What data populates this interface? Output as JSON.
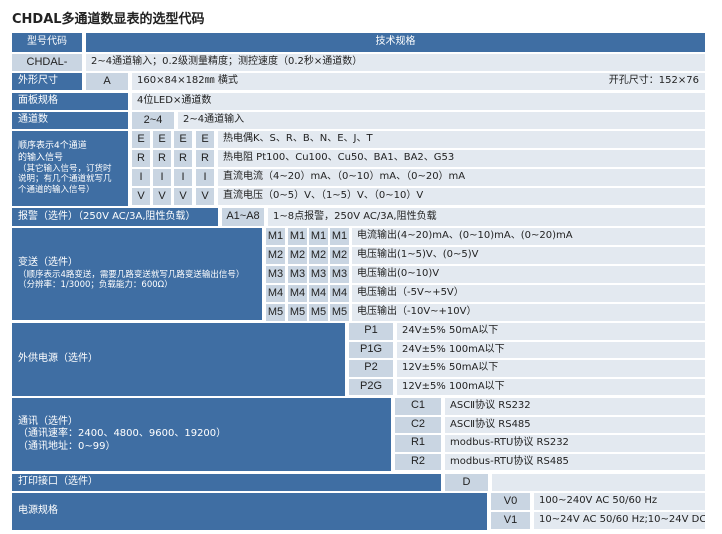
{
  "title": "CHDAL多通道数显表的选型代码",
  "header": {
    "code": "型号代码",
    "spec": "技术规格"
  },
  "model": {
    "code": "CHDAL-",
    "desc": "2~4通道输入；0.2级测量精度；测控速度（0.2秒×通道数）"
  },
  "size": {
    "label": "外形尺寸",
    "code": "A",
    "desc": "160×84×182㎜ 横式",
    "cutout": "开孔尺寸：152×76"
  },
  "panel": {
    "label": "面板规格",
    "desc": "4位LED×通道数"
  },
  "channels": {
    "label": "通道数",
    "code": "2~4",
    "desc": "2~4通道输入"
  },
  "input": {
    "label": "顺序表示4个通道\n的输入信号",
    "note": "（其它输入信号，订货时\n说明；有几个通道就写几\n个通道的输入信号）",
    "rows": [
      {
        "code": "E",
        "desc": "热电偶K、S、R、B、N、E、J、T"
      },
      {
        "code": "R",
        "desc": "热电阻 Pt100、Cu100、Cu50、BA1、BA2、G53"
      },
      {
        "code": "I",
        "desc": "直流电流（4~20）mA、（0~10）mA、（0~20）mA"
      },
      {
        "code": "V",
        "desc": "直流电压（0~5）V、（1~5）V、（0~10）V"
      }
    ]
  },
  "alarm": {
    "label": "报警（选件）（250V AC/3A,阻性负载）",
    "code": "A1~A8",
    "desc": "1~8点报警，250V AC/3A,阻性负载"
  },
  "transmit": {
    "label": "变送（选件）",
    "note": "（顺序表示4路变送，需要几路变送就写几路变送输出信号）\n（分辨率：1/3000；负载能力：600Ω）",
    "rows": [
      {
        "code": "M1",
        "desc": "电流输出(4~20)mA、(0~10)mA、(0~20)mA"
      },
      {
        "code": "M2",
        "desc": "电压输出(1~5)V、(0~5)V"
      },
      {
        "code": "M3",
        "desc": "电压输出(0~10)V"
      },
      {
        "code": "M4",
        "desc": "电压输出（-5V~+5V）"
      },
      {
        "code": "M5",
        "desc": "电压输出（-10V~+10V）"
      }
    ]
  },
  "power_out": {
    "label": "外供电源（选件）",
    "rows": [
      {
        "code": "P1",
        "desc": "24V±5% 50mA以下"
      },
      {
        "code": "P1G",
        "desc": "24V±5% 100mA以下"
      },
      {
        "code": "P2",
        "desc": "12V±5% 50mA以下"
      },
      {
        "code": "P2G",
        "desc": "12V±5% 100mA以下"
      }
    ]
  },
  "comm": {
    "label": "通讯（选件）\n（通讯速率：2400、4800、9600、19200）\n（通讯地址：0~99）",
    "rows": [
      {
        "code": "C1",
        "desc": "ASCⅡ协议 RS232"
      },
      {
        "code": "C2",
        "desc": "ASCⅡ协议 RS485"
      },
      {
        "code": "R1",
        "desc": "modbus-RTU协议 RS232"
      },
      {
        "code": "R2",
        "desc": "modbus-RTU协议 RS485"
      }
    ]
  },
  "print": {
    "label": "打印接口（选件）",
    "code": "D"
  },
  "supply": {
    "label": "电源规格",
    "rows": [
      {
        "code": "V0",
        "desc": "100~240V AC 50/60 Hz"
      },
      {
        "code": "V1",
        "desc": "10~24V AC 50/60 Hz;10~24V DC"
      }
    ]
  },
  "colors": {
    "dark": "#3f6ea3",
    "code": "#c9d5e2",
    "text": "#e3e9f0"
  }
}
